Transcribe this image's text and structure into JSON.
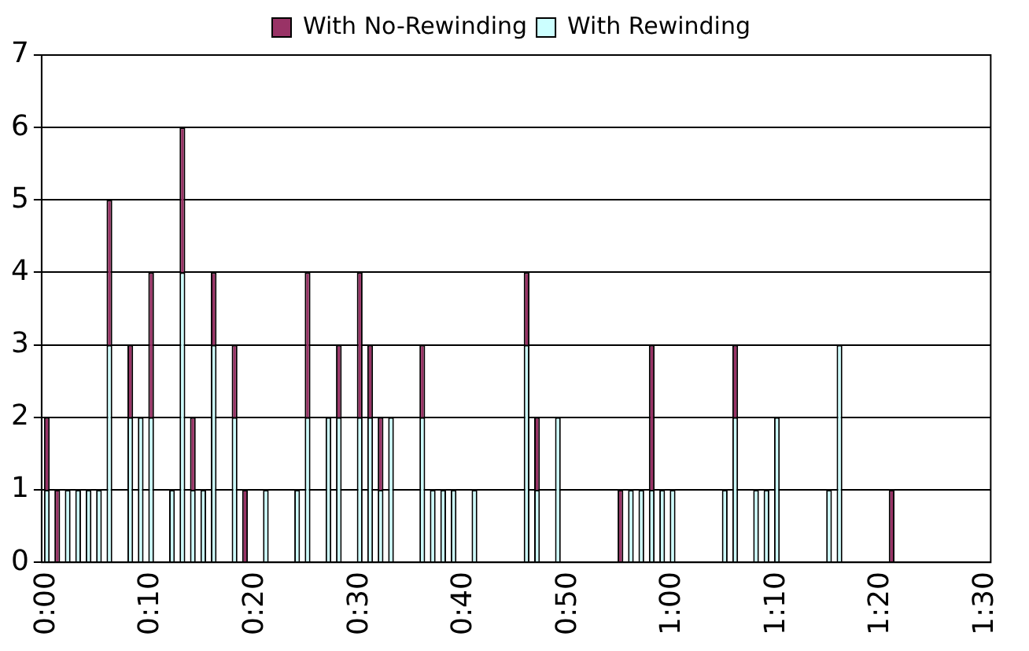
{
  "chart_data": {
    "type": "bar",
    "stacked": true,
    "legend": "top",
    "grid": "y",
    "categories": [
      "0:00",
      null,
      null,
      null,
      null,
      null,
      null,
      null,
      null,
      null,
      "0:10",
      null,
      null,
      null,
      null,
      null,
      null,
      null,
      null,
      null,
      "0:20",
      null,
      null,
      null,
      null,
      null,
      null,
      null,
      null,
      null,
      "0:30",
      null,
      null,
      null,
      null,
      null,
      null,
      null,
      null,
      null,
      "0:40",
      null,
      null,
      null,
      null,
      null,
      null,
      null,
      null,
      null,
      "0:50",
      null,
      null,
      null,
      null,
      null,
      null,
      null,
      null,
      null,
      "1:00",
      null,
      null,
      null,
      null,
      null,
      null,
      null,
      null,
      null,
      "1:10",
      null,
      null,
      null,
      null,
      null,
      null,
      null,
      null,
      null,
      "1:20",
      null,
      null,
      null,
      null,
      null,
      null,
      null,
      null,
      null,
      "1:30"
    ],
    "series": [
      {
        "name": "With Rewinding",
        "color": "#ccffff",
        "values": [
          1,
          0,
          1,
          1,
          1,
          1,
          3,
          0,
          2,
          2,
          2,
          0,
          1,
          4,
          1,
          1,
          3,
          0,
          2,
          0,
          0,
          1,
          0,
          0,
          1,
          2,
          0,
          2,
          2,
          0,
          2,
          2,
          1,
          2,
          0,
          0,
          2,
          1,
          1,
          1,
          0,
          1,
          0,
          0,
          0,
          0,
          3,
          1,
          0,
          2,
          0,
          0,
          0,
          0,
          0,
          0,
          1,
          1,
          1,
          1,
          1,
          0,
          0,
          0,
          0,
          1,
          2,
          0,
          1,
          1,
          2,
          0,
          0,
          0,
          0,
          1,
          3,
          0,
          0,
          0,
          0,
          0,
          0,
          0,
          0,
          0,
          0,
          0,
          0,
          0,
          0
        ]
      },
      {
        "name": "With No-Rewinding",
        "color": "#993366",
        "values": [
          1,
          1,
          0,
          0,
          0,
          0,
          2,
          0,
          1,
          0,
          2,
          0,
          0,
          2,
          1,
          0,
          1,
          0,
          1,
          1,
          0,
          0,
          0,
          0,
          0,
          2,
          0,
          0,
          1,
          0,
          2,
          1,
          1,
          0,
          0,
          0,
          1,
          0,
          0,
          0,
          0,
          0,
          0,
          0,
          0,
          0,
          1,
          1,
          0,
          0,
          0,
          0,
          0,
          0,
          0,
          1,
          0,
          0,
          2,
          0,
          0,
          0,
          0,
          0,
          0,
          0,
          1,
          0,
          0,
          0,
          0,
          0,
          0,
          0,
          0,
          0,
          0,
          0,
          0,
          0,
          0,
          1,
          0,
          0,
          0,
          0,
          0,
          0,
          0,
          0,
          0
        ]
      }
    ],
    "ylim": [
      0,
      7
    ],
    "yticks": [
      0,
      1,
      2,
      3,
      4,
      5,
      6,
      7
    ]
  }
}
